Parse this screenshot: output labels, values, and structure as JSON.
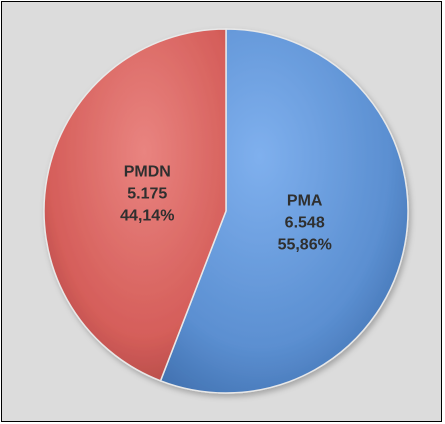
{
  "chart_data": {
    "type": "pie",
    "slices": [
      {
        "label": "PMA",
        "value_text": "6.548",
        "percent_text": "55,86%",
        "value": 6548,
        "percent": 55.86,
        "color": "#5b8fd1"
      },
      {
        "label": "PMDN",
        "value_text": "5.175",
        "percent_text": "44,14%",
        "value": 5175,
        "percent": 44.14,
        "color": "#d55e5a"
      }
    ],
    "title": "",
    "legend": "none"
  }
}
